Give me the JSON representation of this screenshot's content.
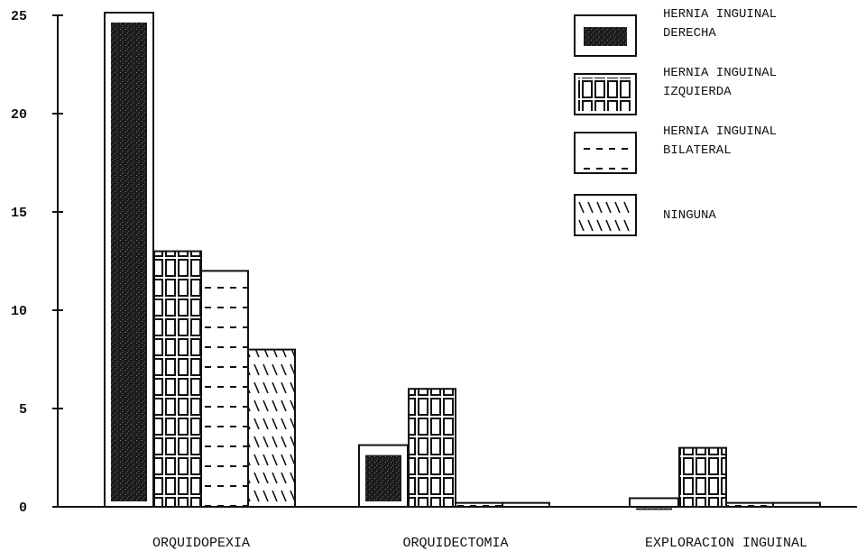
{
  "chart_data": {
    "type": "bar",
    "title": "",
    "xlabel": "",
    "ylabel": "",
    "ylim": [
      0,
      25
    ],
    "yticks": [
      0,
      5,
      10,
      15,
      20,
      25
    ],
    "grid": false,
    "legend_position": "top-right",
    "categories": [
      "ORQUIDOPEXIA",
      "ORQUIDECTOMIA",
      "EXPLORACION INGUINAL"
    ],
    "series": [
      {
        "name": "HERNIA INGUINAL DERECHA",
        "legend_lines": [
          "HERNIA INGUINAL",
          "DERECHA"
        ],
        "pattern": "solid-dark",
        "values": [
          25,
          3,
          0.3
        ]
      },
      {
        "name": "HERNIA INGUINAL IZQUIERDA",
        "legend_lines": [
          "HERNIA INGUINAL",
          "IZQUIERDA"
        ],
        "pattern": "grid",
        "values": [
          13,
          6,
          3
        ]
      },
      {
        "name": "HERNIA INGUINAL BILATERAL",
        "legend_lines": [
          "HERNIA INGUINAL",
          "BILATERAL"
        ],
        "pattern": "dashes",
        "values": [
          12,
          0.2,
          0.2
        ]
      },
      {
        "name": "NINGUNA",
        "legend_lines": [
          "NINGUNA"
        ],
        "pattern": "backslash",
        "values": [
          8,
          0.2,
          0.2
        ]
      }
    ]
  }
}
